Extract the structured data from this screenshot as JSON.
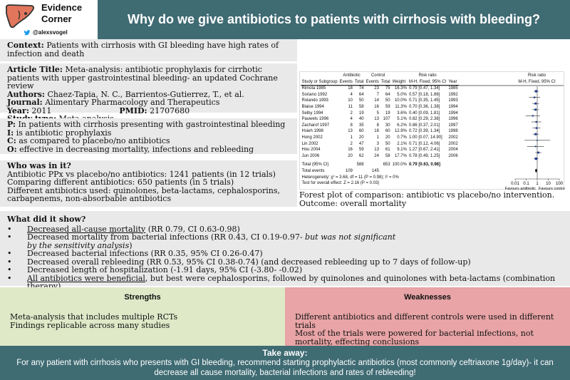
{
  "brand": {
    "name": "Evidence Corner",
    "handle": "@alexsvogel"
  },
  "title": "Why do we give antibiotics to patients with cirrhosis with bleeding?",
  "context": {
    "label": "Context:",
    "text": "Patients with cirrhosis with GI bleeding have high rates of infection and death"
  },
  "article": {
    "title_label": "Article Title:",
    "title": "Meta-analysis: antibiotic prophylaxis for cirrhotic patients with upper gastrointestinal bleeding- an updated Cochrane review",
    "authors_label": "Authors:",
    "authors": "Chaez-Tapia, N. C., Barrientos-Gutierrez, T., et al.",
    "journal_label": "Journal:",
    "journal": "Alimentary Pharmacology and Therapeutics",
    "year_label": "Year:",
    "year": "2011",
    "pmid_label": "PMID:",
    "pmid": "21707680",
    "type_label": "Study type:",
    "type": "Meta-analysis"
  },
  "pico": {
    "p_label": "P:",
    "p": "In patients with cirrhosis presenting with gastrointestinal bleeding",
    "i_label": "I:",
    "i": "is antibiotic prophylaxis",
    "c_label": "C:",
    "c": "as compared to placebo/no antibiotics",
    "o_label": "O:",
    "o": "effective in decreasing mortality, infections and rebleeding"
  },
  "who": {
    "heading": "Who was in it?",
    "lines": [
      "Antibiotic PPx vs placebo/no antibiotics: 1241 patients (in 12 trials)",
      "Comparing different antibiotics: 650 patients (in 5 trials)",
      "Different antibiotics used: quinolones, beta-lactams, cephalosporins, carbapenems, non-absorbable antibiotics"
    ]
  },
  "forest": {
    "headers": {
      "study": "Study or Subgroup",
      "ab": "Antibiotic",
      "ctrl": "Control",
      "events": "Events",
      "total": "Total",
      "weight": "Weight",
      "rr": "Risk ratio",
      "method": "M-H, Fixed, 95% CI",
      "year": "Year",
      "rr2": "Risk ratio",
      "method2": "M-H, Fixed, 95% CI"
    },
    "rows": [
      {
        "study": "Rimola 1985",
        "e1": "18",
        "t1": "74",
        "e2": "23",
        "t2": "75",
        "w": "16.3%",
        "ci": "0.79 [0.47, 1.34]",
        "year": "1985",
        "rr": 0.79,
        "lo": 0.47,
        "hi": 1.34,
        "wt": 16.3
      },
      {
        "study": "Soriano 1992",
        "e1": "4",
        "t1": "64",
        "e2": "7",
        "t2": "64",
        "w": "5.0%",
        "ci": "0.57 [0.18, 1.86]",
        "year": "1992",
        "rr": 0.57,
        "lo": 0.18,
        "hi": 1.86,
        "wt": 5.0
      },
      {
        "study": "Rolando 1993",
        "e1": "10",
        "t1": "50",
        "e2": "14",
        "t2": "50",
        "w": "10.0%",
        "ci": "0.71 [0.35, 1.45]",
        "year": "1993",
        "rr": 0.71,
        "lo": 0.35,
        "hi": 1.45,
        "wt": 10.0
      },
      {
        "study": "Blaise 1994",
        "e1": "11",
        "t1": "58",
        "e2": "16",
        "t2": "59",
        "w": "11.3%",
        "ci": "0.70 [0.36, 1.38]",
        "year": "1994",
        "rr": 0.7,
        "lo": 0.36,
        "hi": 1.38,
        "wt": 11.3
      },
      {
        "study": "Selby 1994",
        "e1": "2",
        "t1": "19",
        "e2": "5",
        "t2": "19",
        "w": "3.6%",
        "ci": "0.40 [0.09, 1.81]",
        "year": "1994",
        "rr": 0.4,
        "lo": 0.09,
        "hi": 1.81,
        "wt": 3.6
      },
      {
        "study": "Pauwels 1996",
        "e1": "4",
        "t1": "40",
        "e2": "13",
        "t2": "107",
        "w": "5.1%",
        "ci": "0.82 [0.29, 2.38]",
        "year": "1996",
        "rr": 0.82,
        "lo": 0.29,
        "hi": 2.38,
        "wt": 5.1
      },
      {
        "study": "Zacharof 1997",
        "e1": "8",
        "t1": "35",
        "e2": "8",
        "t2": "30",
        "w": "6.2%",
        "ci": "0.86 [0.37, 2.01]",
        "year": "1997",
        "rr": 0.86,
        "lo": 0.37,
        "hi": 2.01,
        "wt": 6.2
      },
      {
        "study": "Hsieh 1998",
        "e1": "13",
        "t1": "60",
        "e2": "18",
        "t2": "60",
        "w": "12.9%",
        "ci": "0.72 [0.39, 1.34]",
        "year": "1998",
        "rr": 0.72,
        "lo": 0.39,
        "hi": 1.34,
        "wt": 12.9
      },
      {
        "study": "Hong 2002",
        "e1": "1",
        "t1": "20",
        "e2": "1",
        "t2": "20",
        "w": "0.7%",
        "ci": "1.00 [0.07, 14.90]",
        "year": "2002",
        "rr": 1.0,
        "lo": 0.07,
        "hi": 14.9,
        "wt": 0.7
      },
      {
        "study": "Lin 2002",
        "e1": "2",
        "t1": "47",
        "e2": "3",
        "t2": "50",
        "w": "2.1%",
        "ci": "0.71 [0.12, 4.06]",
        "year": "2002",
        "rr": 0.71,
        "lo": 0.12,
        "hi": 4.06,
        "wt": 2.1
      },
      {
        "study": "Hou 2004",
        "e1": "16",
        "t1": "59",
        "e2": "13",
        "t2": "61",
        "w": "9.1%",
        "ci": "1.27 [0.67, 2.41]",
        "year": "2004",
        "rr": 1.27,
        "lo": 0.67,
        "hi": 2.41,
        "wt": 9.1
      },
      {
        "study": "Jun 2006",
        "e1": "20",
        "t1": "62",
        "e2": "24",
        "t2": "58",
        "w": "17.7%",
        "ci": "0.78 [0.49, 1.25]",
        "year": "2006",
        "rr": 0.78,
        "lo": 0.49,
        "hi": 1.25,
        "wt": 17.7
      }
    ],
    "total": {
      "label": "Total (95% CI)",
      "t1": "588",
      "t2": "653",
      "w": "100.0%",
      "ci": "0.79 [0.63, 0.98]",
      "rr": 0.79,
      "lo": 0.63,
      "hi": 0.98
    },
    "total_events": {
      "label": "Total events",
      "e1": "109",
      "e2": "145"
    },
    "heterogeneity": "Heterogeneity: χ² = 3.68, df = 11 (P = 0.98); I² = 0%",
    "overall": "Test for overall effect: Z = 2.16 (P = 0.03)",
    "axis": {
      "ticks": [
        "0.01",
        "0.1",
        "1",
        "10",
        "100"
      ],
      "tick_values": [
        0.01,
        0.1,
        1,
        10,
        100
      ],
      "left_label": "Favours antibiotic",
      "right_label": "Favours control"
    },
    "caption": "Forest plot of comparison: antibiotic vs placebo/no intervention. Outcome: overall mortality"
  },
  "did": {
    "heading": "What did it show?",
    "items": [
      {
        "u": "Decreased all-cause mortality",
        "rest": " (RR 0.79, CI 0.63-0.98)"
      },
      {
        "text": "Decreased mortality from bacterial infections (RR 0.43, CI 0.19-0.97- ",
        "em": "but was not significant by the sensitivity analysis",
        "post": ")"
      },
      {
        "text": "Decreased bacterial infections (RR 0.35, 95% CI 0.26-0.47)"
      },
      {
        "text": "Decreased overall rebleeding (RR 0.53, 95% CI 0.38-0.74) (and decreased rebleeding up to 7 days of follow-up)"
      },
      {
        "text": "Decreased length of hospitalization (-1.91 days, 95% CI (-3.80- -0.02)"
      },
      {
        "u": "All antibiotics were beneficial",
        "rest": ", but best were cephalosporins, followed by quinolones and quinolones with beta-lactams (combination therapy)."
      }
    ]
  },
  "strengths": {
    "heading": "Strengths",
    "lines": [
      "Meta-analysis that includes multiple RCTs",
      "Findings replicable across many studies"
    ]
  },
  "weaknesses": {
    "heading": "Weaknesses",
    "lines": [
      "Different antibiotics and different controls were used in different trials",
      "Most of the trials were powered for bacterial infections, not mortality, effecting conclusions"
    ]
  },
  "takeaway": {
    "heading": "Take away:",
    "text": "For any patient with cirrhosis who presents with GI bleeding, recommend starting prophylactic antibiotics (most commonly ceftriaxone 1g/day)- it can decrease all cause mortality, bacterial infections and rates of rebleeding!"
  },
  "colors": {
    "teal": "#3f6b73",
    "logo": "#e2765c",
    "strengths": "#dfe9c8",
    "weaknesses": "#e8a4a6"
  }
}
